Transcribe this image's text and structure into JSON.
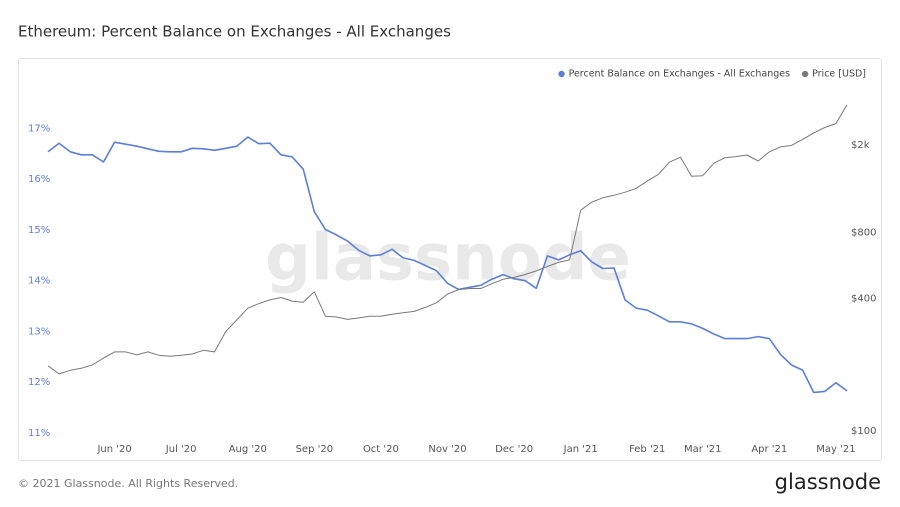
{
  "chart_data": {
    "type": "line",
    "title": "Ethereum: Percent Balance on Exchanges - All Exchanges",
    "watermark": "glassnode",
    "categories": [
      null,
      null,
      null,
      null,
      null,
      null,
      "Jun '20",
      null,
      null,
      null,
      null,
      null,
      "Jul '20",
      null,
      null,
      null,
      null,
      null,
      "Aug '20",
      null,
      null,
      null,
      null,
      null,
      "Sep '20",
      null,
      null,
      null,
      null,
      null,
      "Oct '20",
      null,
      null,
      null,
      null,
      null,
      "Nov '20",
      null,
      null,
      null,
      null,
      null,
      "Dec '20",
      null,
      null,
      null,
      null,
      null,
      "Jan '21",
      null,
      null,
      null,
      null,
      null,
      "Feb '21",
      null,
      null,
      null,
      null,
      "Mar '21",
      null,
      null,
      null,
      null,
      null,
      "Apr '21",
      null,
      null,
      null,
      null,
      null,
      "May '21",
      null
    ],
    "series": [
      {
        "name": "Percent Balance on Exchanges - All Exchanges",
        "color": "#5b7fdb",
        "axis": "y",
        "values": [
          16.54,
          16.71,
          16.54,
          16.48,
          16.48,
          16.34,
          16.73,
          16.69,
          16.65,
          16.6,
          16.55,
          16.54,
          16.54,
          16.61,
          16.6,
          16.57,
          16.61,
          16.65,
          16.83,
          16.7,
          16.71,
          16.48,
          16.44,
          16.2,
          15.36,
          15.01,
          14.9,
          14.78,
          14.6,
          14.49,
          14.51,
          14.62,
          14.45,
          14.4,
          14.3,
          14.2,
          13.95,
          13.83,
          13.87,
          13.91,
          14.03,
          14.12,
          14.04,
          14.0,
          13.85,
          14.49,
          14.41,
          14.51,
          14.59,
          14.37,
          14.24,
          14.25,
          13.62,
          13.46,
          13.42,
          13.31,
          13.19,
          13.19,
          13.15,
          13.06,
          12.95,
          12.86,
          12.86,
          12.86,
          12.9,
          12.86,
          12.55,
          12.34,
          12.24,
          11.8,
          11.82,
          11.99,
          11.83
        ]
      },
      {
        "name": "Price [USD]",
        "color": "#7a7a7a",
        "axis": "y2",
        "values": [
          198,
          182,
          189,
          193,
          200,
          215,
          229,
          229,
          222,
          229,
          221,
          219,
          221,
          224,
          233,
          229,
          283,
          320,
          362,
          380,
          395,
          405,
          390,
          385,
          430,
          333,
          330,
          322,
          327,
          333,
          333,
          340,
          345,
          350,
          365,
          383,
          420,
          440,
          445,
          445,
          468,
          490,
          500,
          515,
          535,
          560,
          585,
          600,
          1010,
          1100,
          1150,
          1180,
          1220,
          1270,
          1370,
          1470,
          1670,
          1760,
          1440,
          1450,
          1650,
          1750,
          1770,
          1800,
          1690,
          1860,
          1960,
          1990,
          2120,
          2270,
          2400,
          2500,
          3050
        ]
      }
    ],
    "ylim": [
      11,
      17.6
    ],
    "yticks": [
      {
        "value": 11,
        "label": "11%"
      },
      {
        "value": 12,
        "label": "12%"
      },
      {
        "value": 13,
        "label": "13%"
      },
      {
        "value": 14,
        "label": "14%"
      },
      {
        "value": 15,
        "label": "15%"
      },
      {
        "value": 16,
        "label": "16%"
      },
      {
        "value": 17,
        "label": "17%"
      }
    ],
    "y2lim": [
      98,
      3270
    ],
    "y2ticks": [
      {
        "value": 100,
        "label": "$100"
      },
      {
        "value": 400,
        "label": "$400"
      },
      {
        "value": 800,
        "label": "$800"
      },
      {
        "value": 2000,
        "label": "$2k"
      }
    ],
    "y2log": true,
    "grid": false,
    "legend": "top-right"
  },
  "footer": {
    "copyright": "© 2021 Glassnode. All Rights Reserved.",
    "brand": "glassnode"
  }
}
